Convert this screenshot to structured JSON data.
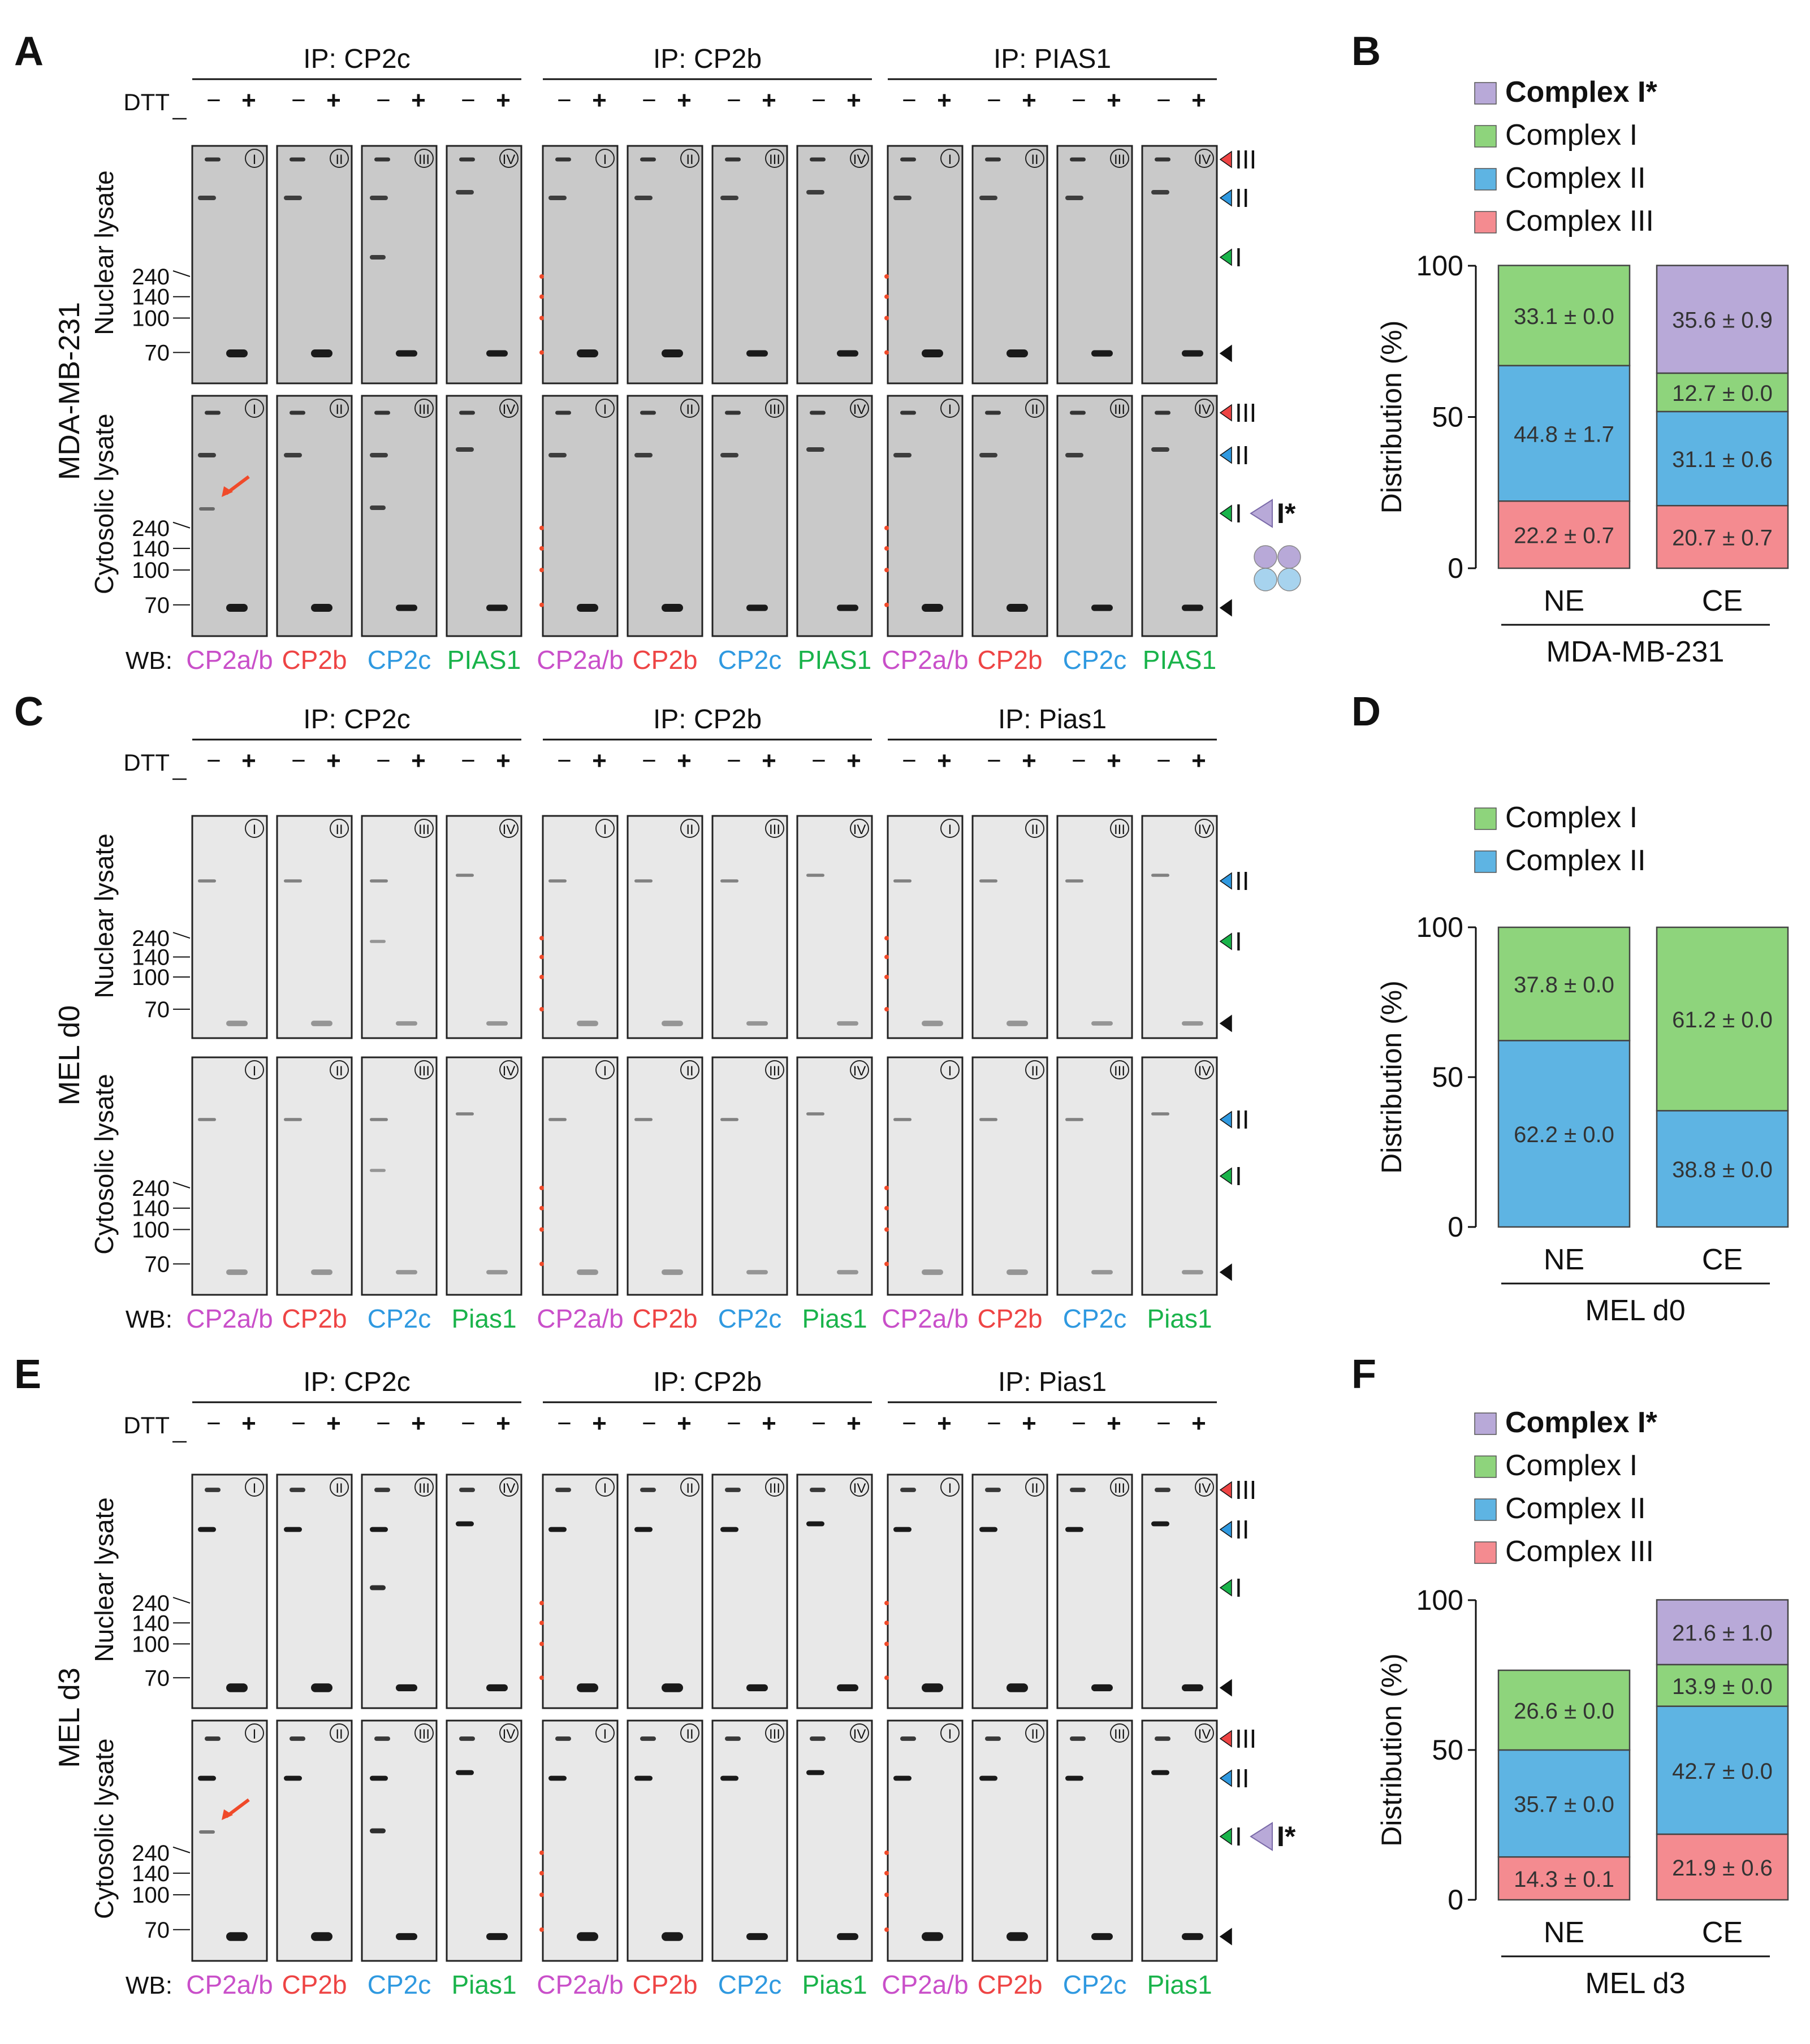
{
  "figure": {
    "marker_kda": [
      "240",
      "140",
      "100",
      "70"
    ],
    "dtt_label": "DTT",
    "dtt_signs": [
      "−",
      "+"
    ],
    "wb_prefix": "WB:",
    "lane_ids": [
      "I",
      "II",
      "III",
      "IV"
    ],
    "band_markers": [
      "III",
      "II",
      "I"
    ],
    "colors": {
      "complex_i_star": "#b8a9d8",
      "complex_i": "#8ed47c",
      "complex_ii": "#5eb4e3",
      "complex_iii": "#f48b90",
      "wb_cp2ab": "#c94fc9",
      "wb_cp2b": "#ee4444",
      "wb_cp2c": "#2f99e0",
      "wb_pias1": "#19b34a",
      "gel_dark": "#c9c9c9",
      "gel_light": "#e8e8e8",
      "arrow_red": "#f04a2a"
    }
  },
  "blots": [
    {
      "letter": "A",
      "cell_line": "MDA-MB-231",
      "ip_groups": [
        "IP: CP2c",
        "IP: CP2b",
        "IP: PIAS1"
      ],
      "rows": [
        "Nuclear lysate",
        "Cytosolic lysate"
      ],
      "wb_labels": [
        "CP2a/b",
        "CP2b",
        "CP2c",
        "PIAS1",
        "CP2a/b",
        "CP2b",
        "CP2c",
        "PIAS1",
        "CP2a/b",
        "CP2b",
        "CP2c",
        "PIAS1"
      ],
      "extra_label": "I*"
    },
    {
      "letter": "C",
      "cell_line": "MEL d0",
      "ip_groups": [
        "IP: CP2c",
        "IP: CP2b",
        "IP: Pias1"
      ],
      "rows": [
        "Nuclear lysate",
        "Cytosolic lysate"
      ],
      "wb_labels": [
        "CP2a/b",
        "CP2b",
        "CP2c",
        "Pias1",
        "CP2a/b",
        "CP2b",
        "CP2c",
        "Pias1",
        "CP2a/b",
        "CP2b",
        "CP2c",
        "Pias1"
      ]
    },
    {
      "letter": "E",
      "cell_line": "MEL d3",
      "ip_groups": [
        "IP: CP2c",
        "IP: CP2b",
        "IP: Pias1"
      ],
      "rows": [
        "Nuclear lysate",
        "Cytosolic lysate"
      ],
      "wb_labels": [
        "CP2a/b",
        "CP2b",
        "CP2c",
        "Pias1",
        "CP2a/b",
        "CP2b",
        "CP2c",
        "Pias1",
        "CP2a/b",
        "CP2b",
        "CP2c",
        "Pias1"
      ],
      "extra_label": "I*"
    }
  ],
  "chart_data": [
    {
      "panel": "B",
      "type": "bar",
      "stacked": true,
      "title": "",
      "xlabel": "MDA-MB-231",
      "ylabel": "Distribution (%)",
      "ylim": [
        0,
        100
      ],
      "yticks": [
        "0",
        "50",
        "100"
      ],
      "categories": [
        "NE",
        "CE"
      ],
      "legend": [
        "Complex I*",
        "Complex I",
        "Complex II",
        "Complex III"
      ],
      "series": [
        {
          "name": "Complex III",
          "values": [
            22.2,
            20.7
          ],
          "labels": [
            "22.2 ± 0.7",
            "20.7 ± 0.7"
          ]
        },
        {
          "name": "Complex II",
          "values": [
            44.8,
            31.1
          ],
          "labels": [
            "44.8 ± 1.7",
            "31.1 ± 0.6"
          ]
        },
        {
          "name": "Complex I",
          "values": [
            33.1,
            12.7
          ],
          "labels": [
            "33.1 ± 0.0",
            "12.7 ± 0.0"
          ]
        },
        {
          "name": "Complex I*",
          "values": [
            0,
            35.6
          ],
          "labels": [
            "",
            "35.6 ± 0.9"
          ]
        }
      ]
    },
    {
      "panel": "D",
      "type": "bar",
      "stacked": true,
      "title": "",
      "xlabel": "MEL d0",
      "ylabel": "Distribution (%)",
      "ylim": [
        0,
        100
      ],
      "yticks": [
        "0",
        "50",
        "100"
      ],
      "categories": [
        "NE",
        "CE"
      ],
      "legend": [
        "Complex I",
        "Complex II"
      ],
      "series": [
        {
          "name": "Complex II",
          "values": [
            62.2,
            38.8
          ],
          "labels": [
            "62.2 ± 0.0",
            "38.8 ± 0.0"
          ]
        },
        {
          "name": "Complex I",
          "values": [
            37.8,
            61.2
          ],
          "labels": [
            "37.8 ± 0.0",
            "61.2 ± 0.0"
          ]
        }
      ]
    },
    {
      "panel": "F",
      "type": "bar",
      "stacked": true,
      "title": "",
      "xlabel": "MEL d3",
      "ylabel": "Distribution (%)",
      "ylim": [
        0,
        100
      ],
      "yticks": [
        "0",
        "50",
        "100"
      ],
      "categories": [
        "NE",
        "CE"
      ],
      "legend": [
        "Complex I*",
        "Complex I",
        "Complex II",
        "Complex III"
      ],
      "series": [
        {
          "name": "Complex III",
          "values": [
            14.3,
            21.9
          ],
          "labels": [
            "14.3 ± 0.1",
            "21.9 ± 0.6"
          ]
        },
        {
          "name": "Complex II",
          "values": [
            35.7,
            42.7
          ],
          "labels": [
            "35.7 ± 0.0",
            "42.7 ± 0.0"
          ]
        },
        {
          "name": "Complex I",
          "values": [
            26.6,
            13.9
          ],
          "labels": [
            "26.6 ± 0.0",
            "13.9 ± 0.0"
          ]
        },
        {
          "name": "Complex I*",
          "values": [
            0,
            21.6
          ],
          "labels": [
            "",
            "21.6 ± 1.0"
          ]
        }
      ]
    }
  ]
}
